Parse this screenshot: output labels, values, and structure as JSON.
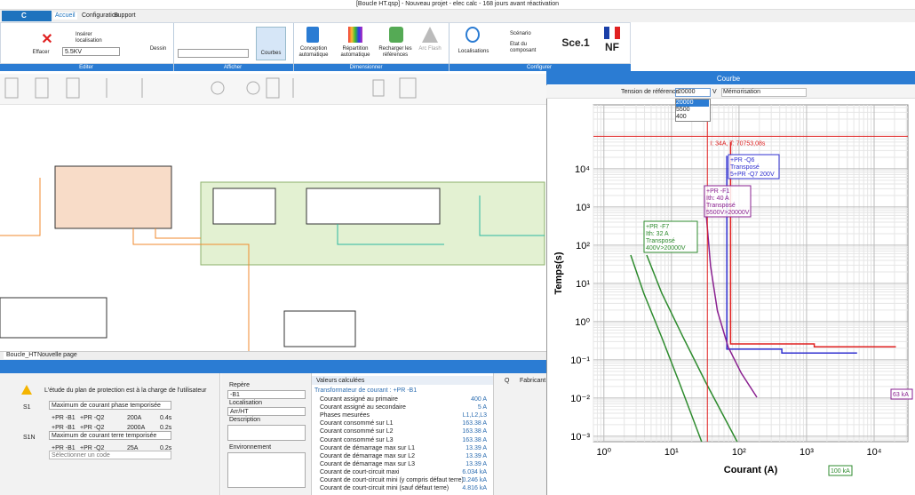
{
  "window": {
    "title": "[Boucle HT.qsp] - Nouveau projet - elec calc - 168 jours avant réactivation"
  },
  "ribbon": {
    "logo": "C",
    "tabs": [
      "Accueil",
      "Configuration",
      "Support"
    ],
    "groups": [
      "Editer",
      "Afficher",
      "Dimensionner",
      "Configurer"
    ],
    "buttons": [
      "Insérer localisation",
      "Effacer",
      "Dessin",
      "Courbes",
      "Conception automatique",
      "Répartition automatique",
      "Recharger les références",
      "Arc Flash",
      "Localisations",
      "Scénario",
      "Etat du composant",
      "Sce.1",
      "NF"
    ],
    "voltage": "5.5KV"
  },
  "document_tabs": [
    "Boucle_HT",
    "Nouvelle page"
  ],
  "protection_panel": {
    "warning": "L'étude du plan de protection est à la charge de l'utilisateur",
    "codes": [
      {
        "code": "S1",
        "function": "Maximum de courant phase temporisée",
        "settings": [
          [
            "+PR -B1",
            "+PR -Q2",
            "200A",
            "0.4s"
          ],
          [
            "+PR -B1",
            "+PR -Q2",
            "2000A",
            "0.2s"
          ]
        ]
      },
      {
        "code": "S1N",
        "function": "Maximum de courant terre temporisée",
        "settings": [
          [
            "+PR -B1",
            "+PR -Q2",
            "25A",
            "0.2s"
          ]
        ]
      }
    ],
    "placeholder": "Sélectionner un code"
  },
  "properties_panel": {
    "repere_label": "Repère",
    "repere_value": "-B1",
    "localisation_label": "Localisation",
    "localisation_value": "Arr/HT",
    "description_label": "Description",
    "environment_label": "Environnement"
  },
  "values_panel": {
    "title": "Valeurs calculées",
    "section": "Transformateur de courant : +PR -B1",
    "rows": [
      [
        "Courant assigné au primaire",
        "400 A"
      ],
      [
        "Courant assigné au secondaire",
        "5 A"
      ],
      [
        "Phases mesurées",
        "L1,L2,L3"
      ],
      [
        "Courant consommé sur L1",
        "163.38 A"
      ],
      [
        "Courant consommé sur L2",
        "163.38 A"
      ],
      [
        "Courant consommé sur L3",
        "163.38 A"
      ],
      [
        "Courant de démarrage max sur L1",
        "13.39 A"
      ],
      [
        "Courant de démarrage max sur L2",
        "13.39 A"
      ],
      [
        "Courant de démarrage max sur L3",
        "13.39 A"
      ],
      [
        "Courant de court-circuit maxi",
        "6.034 kA"
      ],
      [
        "Courant de court-circuit mini (y compris défaut terre)",
        "0.246 kA"
      ],
      [
        "Courant de court-circuit mini (sauf défaut terre)",
        "4.816 kA"
      ]
    ]
  },
  "catalog_panel": {
    "columns": [
      "Q",
      "Fabricant"
    ]
  },
  "curve_panel": {
    "title": "Courbe",
    "reference_label": "Tension de référence",
    "reference_value": "20000",
    "unit": "V",
    "options": [
      "20000",
      "5500",
      "400"
    ],
    "memorisation": "Mémorisation"
  },
  "chart_data": {
    "type": "line",
    "xlabel": "Courant (A)",
    "ylabel": "Temps(s)",
    "xscale": "log",
    "yscale": "log",
    "grid": true,
    "xlim": [
      0.7,
      31600
    ],
    "ylim": [
      0.00072,
      470000
    ],
    "xticks": [
      {
        "value": 1,
        "label": "10⁰"
      },
      {
        "value": 10,
        "label": "10¹"
      },
      {
        "value": 100,
        "label": "10²"
      },
      {
        "value": 1000,
        "label": "10³"
      },
      {
        "value": 10000,
        "label": "10⁴"
      }
    ],
    "yticks": [
      {
        "value": 0.001,
        "label": "10⁻³"
      },
      {
        "value": 0.01,
        "label": "10⁻²"
      },
      {
        "value": 0.1,
        "label": "10⁻¹"
      },
      {
        "value": 1,
        "label": "10⁰"
      },
      {
        "value": 10,
        "label": "10¹"
      },
      {
        "value": 100,
        "label": "10²"
      },
      {
        "value": 1000,
        "label": "10³"
      },
      {
        "value": 10000,
        "label": "10⁴"
      }
    ],
    "series": [
      {
        "color": "#e02020",
        "x": [
          75,
          75,
          1300,
          1300,
          21000
        ],
        "values": [
          50000,
          0.26,
          0.26,
          0.22,
          0.22
        ]
      },
      {
        "color": "#3030d0",
        "x": [
          66,
          66,
          430,
          430,
          5600
        ],
        "values": [
          22000,
          0.19,
          0.19,
          0.15,
          0.15
        ]
      },
      {
        "color": "#8a2090",
        "x": [
          31,
          38,
          48,
          69,
          108,
          184
        ],
        "values": [
          2000,
          28,
          1.9,
          0.22,
          0.045,
          0.0105
        ]
      },
      {
        "color": "#2e8b2e",
        "x": [
          2.5,
          3.9,
          7.2,
          13,
          28
        ],
        "values": [
          55,
          5.5,
          0.38,
          0.026,
          0.00072
        ]
      },
      {
        "color": "#2e8b2e",
        "x": [
          4.3,
          7.2,
          15,
          32,
          94
        ],
        "values": [
          55,
          5.5,
          0.38,
          0.026,
          0.00072
        ]
      }
    ],
    "cursor": {
      "x": 34,
      "y": 70753.08,
      "label": "I: 34A, T: 70753,08s",
      "color": "#e02020"
    },
    "annotations": [
      {
        "lines": [
          "+PR -Q6",
          "Transposé",
          "5+PR -Q7 200V"
        ],
        "color": "#3030d0"
      },
      {
        "lines": [
          "+PR -F1",
          "Ith: 40 A",
          "Transposé",
          "5500V>20000V"
        ],
        "color": "#8a2090"
      },
      {
        "lines": [
          "+PR -F7",
          "Ith: 32 A",
          "Transposé",
          "400V>20000V"
        ],
        "color": "#2e8b2e"
      },
      {
        "lines": [
          "63 kA"
        ],
        "color": "#8a2090"
      },
      {
        "lines": [
          "100 kA"
        ],
        "color": "#2e8b2e"
      }
    ]
  }
}
